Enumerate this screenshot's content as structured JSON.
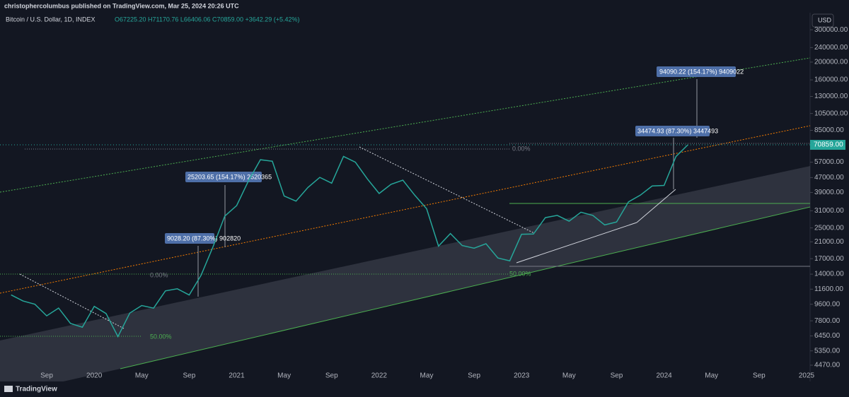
{
  "header": {
    "publisher": "christophercolumbus published on TradingView.com, Mar 25, 2024 20:26 UTC",
    "symbol": "Bitcoin / U.S. Dollar, 1D, INDEX",
    "ohlc": "O67225.20 H71170.76 L66406.06 C70859.00 +3642.29 (+5.42%)",
    "currency": "USD",
    "brand": "TradingView"
  },
  "chart_data": {
    "type": "line",
    "color": "#26a69a",
    "log_scale": true,
    "grid": false,
    "categories": [
      null,
      null,
      null,
      "Sep",
      null,
      null,
      null,
      "2020",
      null,
      null,
      null,
      "May",
      null,
      null,
      null,
      "Sep",
      null,
      null,
      null,
      "2021",
      null,
      null,
      null,
      "May",
      null,
      null,
      null,
      "Sep",
      null,
      null,
      null,
      "2022",
      null,
      null,
      null,
      "May",
      null,
      null,
      null,
      "Sep",
      null,
      null,
      null,
      "2023",
      null,
      null,
      null,
      "May",
      null,
      null,
      null,
      "Sep",
      null,
      null,
      null,
      "2024",
      null,
      null,
      null,
      "May",
      null,
      null,
      null,
      "Sep",
      null,
      null,
      null,
      "2025"
    ],
    "values": [
      10800,
      10000,
      9600,
      8300,
      9150,
      7550,
      7200,
      9350,
      8550,
      6400,
      8600,
      9450,
      9140,
      11350,
      11650,
      10780,
      13800,
      19700,
      29000,
      33100,
      45200,
      58800,
      57700,
      37300,
      35000,
      41500,
      47100,
      43800,
      61300,
      57000,
      46300,
      38500,
      43200,
      45500,
      37700,
      31800,
      19900,
      23300,
      20050,
      19400,
      20500,
      17150,
      16550,
      23100,
      23150,
      28450,
      29250,
      27200,
      30450,
      29250,
      25950,
      26950,
      34650,
      37700,
      42300,
      42600,
      61200,
      70859,
      null,
      null,
      null,
      null,
      null,
      null,
      null,
      null,
      null,
      null
    ],
    "ylim": [
      4090,
      365000
    ],
    "yticks": [
      {
        "value": 4470,
        "label": "4470.00"
      },
      {
        "value": 5350,
        "label": "5350.00"
      },
      {
        "value": 6450,
        "label": "6450.00"
      },
      {
        "value": 7800,
        "label": "7800.00"
      },
      {
        "value": 9600,
        "label": "9600.00"
      },
      {
        "value": 11600,
        "label": "11600.00"
      },
      {
        "value": 14000,
        "label": "14000.00"
      },
      {
        "value": 17000,
        "label": "17000.00"
      },
      {
        "value": 21000,
        "label": "21000.00"
      },
      {
        "value": 25000,
        "label": "25000.00"
      },
      {
        "value": 31000,
        "label": "31000.00"
      },
      {
        "value": 39000,
        "label": "39000.00"
      },
      {
        "value": 47000,
        "label": "47000.00"
      },
      {
        "value": 57000,
        "label": "57000.00"
      },
      {
        "value": 85000,
        "label": "85000.00"
      },
      {
        "value": 105000,
        "label": "105000.00"
      },
      {
        "value": 130000,
        "label": "130000.00"
      },
      {
        "value": 160000,
        "label": "160000.00"
      },
      {
        "value": 200000,
        "label": "200000.00"
      },
      {
        "value": 240000,
        "label": "240000.00"
      },
      {
        "value": 300000,
        "label": "300000.00"
      }
    ],
    "last_price": {
      "value": 70859,
      "label": "70859.00"
    },
    "annotations": [
      "9028.20 (87.30%) 902820",
      "25203.65 (154.17%) 2520365",
      "34474.93 (87.30%) 3447493",
      "94090.22 (154.17%) 9409022",
      "0.00%",
      "50.00%",
      "0.00%",
      "50.00%"
    ]
  }
}
